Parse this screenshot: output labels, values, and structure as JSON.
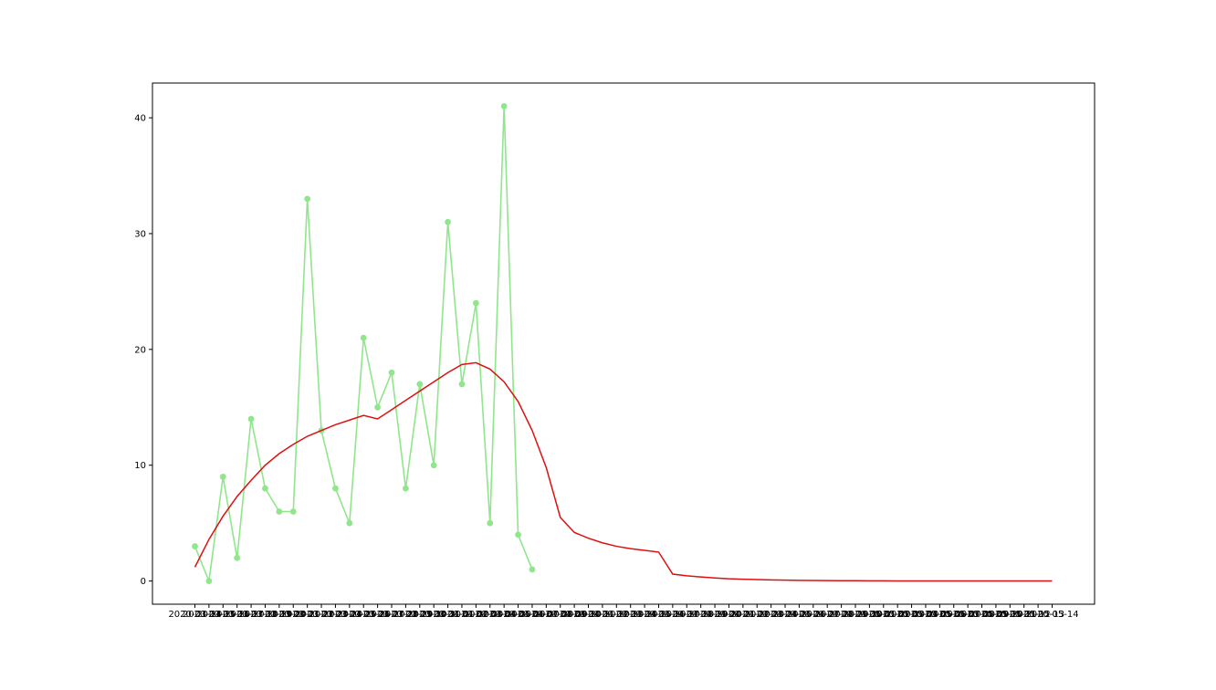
{
  "chart_data": {
    "type": "line",
    "title": "",
    "xlabel": "",
    "ylabel": "",
    "ylim": [
      -2,
      43
    ],
    "yticks": [
      0,
      10,
      20,
      30,
      40
    ],
    "grid": false,
    "colors": {
      "observed": "#90e68c",
      "fit": "#dd1010"
    },
    "x_tick_labels": [
      "2020-03-14",
      "2020-03-15",
      "2020-03-16",
      "2020-03-17",
      "2020-03-18",
      "2020-03-19",
      "2020-03-20",
      "2020-03-21",
      "2020-03-22",
      "2020-03-23",
      "2020-03-24",
      "2020-03-25",
      "2020-03-26",
      "2020-03-27",
      "2020-03-28",
      "2020-03-29",
      "2020-03-30",
      "2020-03-31",
      "2020-04-01",
      "2020-04-02",
      "2020-04-03",
      "2020-04-04",
      "2020-04-05",
      "2020-04-06",
      "2020-04-07",
      "2020-04-08",
      "2020-04-09",
      "2020-04-10",
      "2020-04-11",
      "2020-04-12",
      "2020-04-13",
      "2020-04-14",
      "2020-04-15",
      "2020-04-16",
      "2020-04-17",
      "2020-04-18",
      "2020-04-19",
      "2020-04-20",
      "2020-04-21",
      "2020-04-22",
      "2020-04-23",
      "2020-04-24",
      "2020-04-25",
      "2020-04-26",
      "2020-04-27",
      "2020-04-28",
      "2020-04-29",
      "2020-04-30",
      "2020-05-01",
      "2020-05-02",
      "2020-05-03",
      "2020-05-04",
      "2020-05-05",
      "2020-05-06",
      "2020-05-07",
      "2020-05-08",
      "2020-05-09",
      "2020-05-10",
      "2020-05-11",
      "2020-05-12",
      "2020-05-13",
      "2020-05-14"
    ],
    "series": [
      {
        "marker": "circle",
        "values": [
          3,
          0,
          9,
          2,
          14,
          8,
          6,
          6,
          33,
          13,
          8,
          5,
          21,
          15,
          18,
          8,
          17,
          10,
          31,
          17,
          24,
          5,
          41,
          4,
          1
        ]
      },
      {
        "marker": "none",
        "values": [
          1.2,
          3.6,
          5.6,
          7.3,
          8.7,
          10.0,
          11.0,
          11.8,
          12.5,
          13.0,
          13.5,
          13.9,
          14.3,
          14.0,
          14.8,
          15.6,
          16.4,
          17.2,
          18.0,
          18.7,
          18.85,
          18.3,
          17.2,
          15.5,
          13.0,
          9.8,
          5.5,
          4.2,
          3.7,
          3.3,
          3.0,
          2.8,
          2.65,
          2.5,
          0.6,
          0.45,
          0.35,
          0.27,
          0.2,
          0.16,
          0.13,
          0.1,
          0.08,
          0.06,
          0.05,
          0.04,
          0.03,
          0.025,
          0.02,
          0.015,
          0.01,
          0.01,
          0.01,
          0.01,
          0.01,
          0.01,
          0.01,
          0.01,
          0.01,
          0.01,
          0.01,
          0.01
        ]
      }
    ]
  }
}
